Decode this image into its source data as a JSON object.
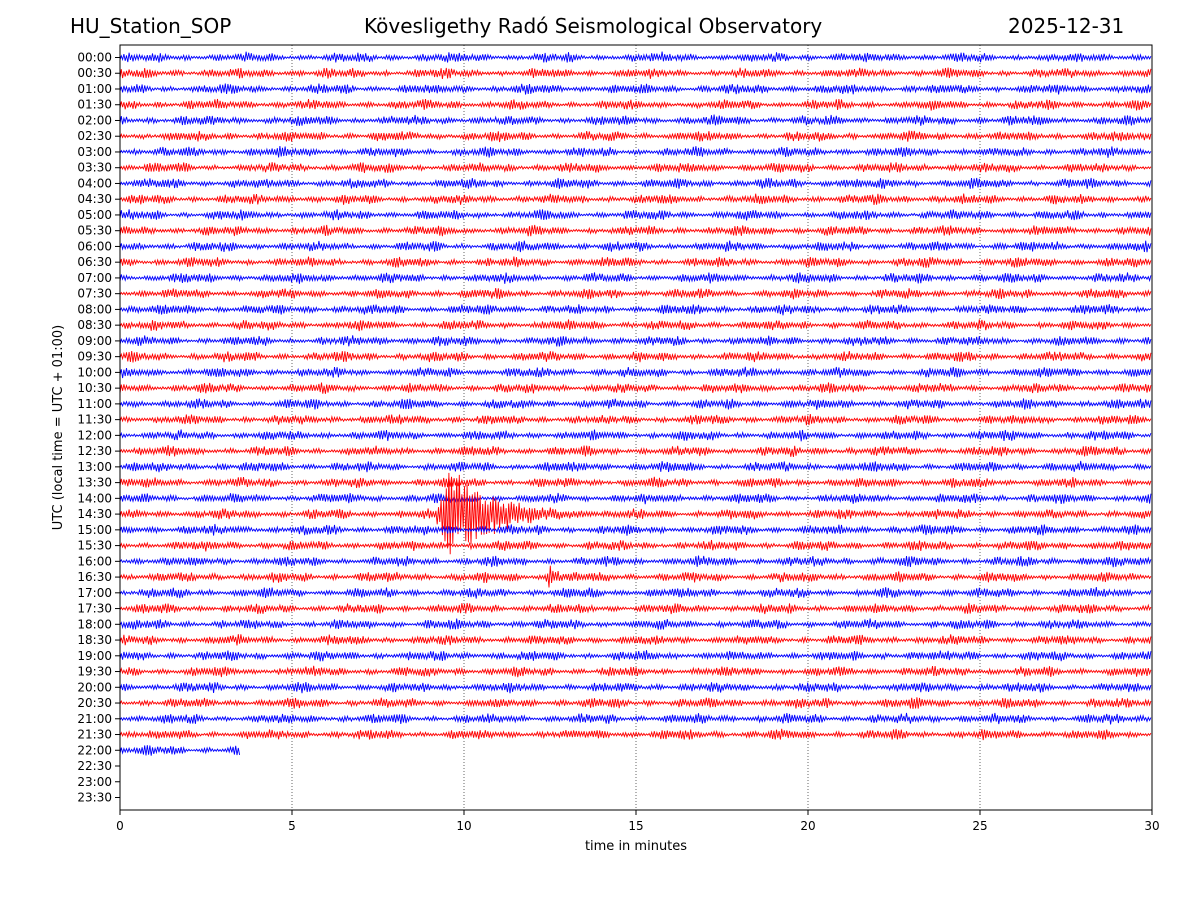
{
  "header": {
    "station": "HU_Station_SOP",
    "observatory": "Kövesligethy Radó Seismological Observatory",
    "date": "2025-12-31"
  },
  "chart_data": {
    "type": "line",
    "title": "Kövesligethy Radó Seismological Observatory",
    "xlabel": "time in minutes",
    "ylabel": "UTC (local time = UTC + 01:00)",
    "xlim": [
      0,
      30
    ],
    "xticks": [
      0,
      5,
      10,
      15,
      20,
      25,
      30
    ],
    "grid": "vertical dotted lines at 5-minute intervals",
    "row_labels": [
      "00:00",
      "00:30",
      "01:00",
      "01:30",
      "02:00",
      "02:30",
      "03:00",
      "03:30",
      "04:00",
      "04:30",
      "05:00",
      "05:30",
      "06:00",
      "06:30",
      "07:00",
      "07:30",
      "08:00",
      "08:30",
      "09:00",
      "09:30",
      "10:00",
      "10:30",
      "11:00",
      "11:30",
      "12:00",
      "12:30",
      "13:00",
      "13:30",
      "14:00",
      "14:30",
      "15:00",
      "15:30",
      "16:00",
      "16:30",
      "17:00",
      "17:30",
      "18:00",
      "18:30",
      "19:00",
      "19:30",
      "20:00",
      "20:30",
      "21:00",
      "21:30",
      "22:00",
      "22:30",
      "23:00",
      "23:30"
    ],
    "colors": {
      "even_rows": "#0000ff",
      "odd_rows": "#ff0000"
    },
    "trace_coverage_minutes": {
      "full_rows_through": "21:30",
      "partial_row": "22:00",
      "partial_end": 3.5,
      "empty_rows": [
        "22:30",
        "23:00",
        "23:30"
      ]
    },
    "events": [
      {
        "row": "14:30",
        "start": 9.1,
        "peak": 9.6,
        "end": 14.0,
        "amplitude": "large"
      },
      {
        "row": "16:30",
        "start": 12.3,
        "peak": 12.5,
        "end": 13.4,
        "amplitude": "medium"
      },
      {
        "row": "04:30",
        "start": 4.6,
        "peak": 4.9,
        "end": 5.3,
        "amplitude": "small"
      },
      {
        "row": "04:00",
        "start": 20.5,
        "peak": 21.2,
        "end": 21.8,
        "amplitude": "small"
      },
      {
        "row": "11:30",
        "start": 22.6,
        "peak": 22.9,
        "end": 23.2,
        "amplitude": "small"
      }
    ]
  }
}
